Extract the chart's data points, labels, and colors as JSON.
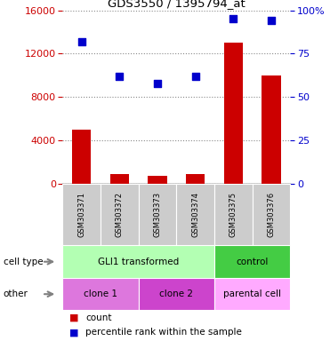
{
  "title": "GDS3550 / 1395794_at",
  "samples": [
    "GSM303371",
    "GSM303372",
    "GSM303373",
    "GSM303374",
    "GSM303375",
    "GSM303376"
  ],
  "counts": [
    5000,
    900,
    750,
    900,
    13000,
    10000
  ],
  "percentile_ranks": [
    82,
    62,
    58,
    62,
    95,
    94
  ],
  "ylim_left": [
    0,
    16000
  ],
  "ylim_right": [
    0,
    100
  ],
  "yticks_left": [
    0,
    4000,
    8000,
    12000,
    16000
  ],
  "yticks_right": [
    0,
    25,
    50,
    75,
    100
  ],
  "bar_color": "#cc0000",
  "dot_color": "#0000cc",
  "cell_type_groups": [
    {
      "text": "GLI1 transformed",
      "span": [
        0,
        4
      ],
      "color": "#b3ffb3"
    },
    {
      "text": "control",
      "span": [
        4,
        6
      ],
      "color": "#44cc44"
    }
  ],
  "other_groups": [
    {
      "text": "clone 1",
      "span": [
        0,
        2
      ],
      "color": "#dd77dd"
    },
    {
      "text": "clone 2",
      "span": [
        2,
        4
      ],
      "color": "#cc44cc"
    },
    {
      "text": "parental cell",
      "span": [
        4,
        6
      ],
      "color": "#ffaaff"
    }
  ],
  "sample_box_color": "#cccccc",
  "bg_color": "#ffffff",
  "axis_color_left": "#cc0000",
  "axis_color_right": "#0000cc",
  "grid_color": "#888888",
  "bar_width": 0.5,
  "dot_size": 35,
  "spine_color": "#000000"
}
